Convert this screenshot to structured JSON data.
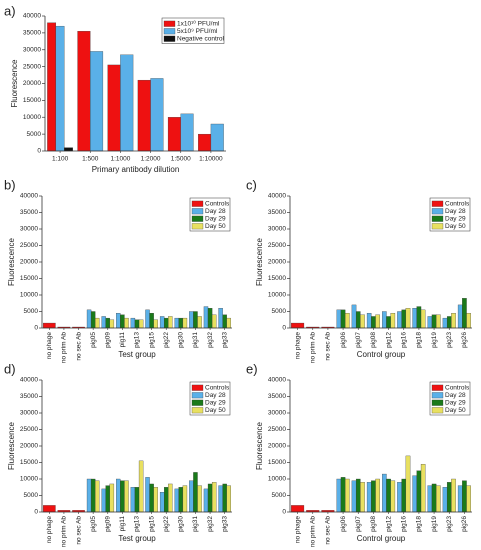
{
  "chart_data": [
    {
      "type": "bar",
      "panel": "a)",
      "ylabel": "Fluorescence",
      "xlabel": "Primary antibody dilution",
      "categories": [
        "1:100",
        "1:500",
        "1:1000",
        "1:2000",
        "1:5000",
        "1:10000"
      ],
      "series": [
        {
          "name": "1x10¹⁰ PFU/ml",
          "color": "#ee1111",
          "values": [
            38000,
            35500,
            25500,
            21000,
            10000,
            5000
          ]
        },
        {
          "name": "5x10⁹ PFU/ml",
          "color": "#5ab0e8",
          "values": [
            37000,
            29500,
            28500,
            21500,
            11000,
            8000
          ]
        },
        {
          "name": "Negative control",
          "color": "#111111",
          "values": [
            1000,
            null,
            null,
            null,
            null,
            null
          ]
        }
      ],
      "ylim": [
        0,
        40000
      ],
      "yticks": [
        0,
        5000,
        10000,
        15000,
        20000,
        25000,
        30000,
        35000,
        40000
      ]
    },
    {
      "type": "bar",
      "panel": "b)",
      "ylabel": "Fluorescence",
      "xlabel": "Test group",
      "categories": [
        "no phage",
        "no prim Ab",
        "no sec Ab",
        "pig05",
        "pig09",
        "pig11",
        "pig13",
        "pig15",
        "pig22",
        "pig30",
        "pig31",
        "pig32",
        "pig33"
      ],
      "series": [
        {
          "name": "Controls",
          "color": "#ee1111",
          "values": [
            1500,
            300,
            300,
            null,
            null,
            null,
            null,
            null,
            null,
            null,
            null,
            null,
            null
          ]
        },
        {
          "name": "Day 28",
          "color": "#5ab0e8",
          "values": [
            null,
            null,
            null,
            5500,
            3500,
            4500,
            3000,
            5500,
            3500,
            3000,
            5000,
            6500,
            6000
          ]
        },
        {
          "name": "Day 29",
          "color": "#1a7a1a",
          "values": [
            null,
            null,
            null,
            5000,
            3000,
            4000,
            2500,
            4500,
            3000,
            3000,
            5000,
            6000,
            4000
          ]
        },
        {
          "name": "Day 50",
          "color": "#e8e060",
          "values": [
            null,
            null,
            null,
            3000,
            2500,
            3000,
            2500,
            2500,
            3500,
            3000,
            3500,
            4000,
            3000
          ]
        }
      ],
      "ylim": [
        0,
        40000
      ],
      "yticks": [
        0,
        5000,
        10000,
        15000,
        20000,
        25000,
        30000,
        35000,
        40000
      ]
    },
    {
      "type": "bar",
      "panel": "c)",
      "ylabel": "Fluorescence",
      "xlabel": "Control group",
      "categories": [
        "no phage",
        "no prim Ab",
        "no sec Ab",
        "pig06",
        "pig07",
        "pig08",
        "pig12",
        "pig16",
        "pig18",
        "pig19",
        "pig23",
        "pig26"
      ],
      "series": [
        {
          "name": "Controls",
          "color": "#ee1111",
          "values": [
            1500,
            300,
            300,
            null,
            null,
            null,
            null,
            null,
            null,
            null,
            null,
            null
          ]
        },
        {
          "name": "Day 28",
          "color": "#5ab0e8",
          "values": [
            null,
            null,
            null,
            5500,
            7000,
            4500,
            5000,
            5000,
            6000,
            3500,
            3000,
            7000
          ]
        },
        {
          "name": "Day 29",
          "color": "#1a7a1a",
          "values": [
            null,
            null,
            null,
            5500,
            5000,
            3500,
            3500,
            5500,
            6500,
            4000,
            3500,
            9000
          ]
        },
        {
          "name": "Day 50",
          "color": "#e8e060",
          "values": [
            null,
            null,
            null,
            4500,
            4000,
            4000,
            4500,
            6000,
            5500,
            4000,
            4500,
            4500
          ]
        }
      ],
      "ylim": [
        0,
        40000
      ],
      "yticks": [
        0,
        5000,
        10000,
        15000,
        20000,
        25000,
        30000,
        35000,
        40000
      ]
    },
    {
      "type": "bar",
      "panel": "d)",
      "ylabel": "Fluorescence",
      "xlabel": "Test group",
      "categories": [
        "no phage",
        "no prim Ab",
        "no sec Ab",
        "pig05",
        "pig09",
        "pig11",
        "pig13",
        "pig15",
        "pig22",
        "pig30",
        "pig31",
        "pig32",
        "pig33"
      ],
      "series": [
        {
          "name": "Controls",
          "color": "#ee1111",
          "values": [
            2000,
            500,
            500,
            null,
            null,
            null,
            null,
            null,
            null,
            null,
            null,
            null,
            null
          ]
        },
        {
          "name": "Day 28",
          "color": "#5ab0e8",
          "values": [
            null,
            null,
            null,
            10000,
            7000,
            10000,
            7500,
            10500,
            6000,
            7000,
            9500,
            7000,
            8000
          ]
        },
        {
          "name": "Day 29",
          "color": "#1a7a1a",
          "values": [
            null,
            null,
            null,
            10000,
            8000,
            9500,
            7500,
            8500,
            7500,
            7500,
            12000,
            8500,
            8500
          ]
        },
        {
          "name": "Day 50",
          "color": "#e8e060",
          "values": [
            null,
            null,
            null,
            9500,
            8500,
            9500,
            15500,
            7500,
            8500,
            8000,
            8000,
            9000,
            8000
          ]
        }
      ],
      "ylim": [
        0,
        40000
      ],
      "yticks": [
        0,
        5000,
        10000,
        15000,
        20000,
        25000,
        30000,
        35000,
        40000
      ]
    },
    {
      "type": "bar",
      "panel": "e)",
      "ylabel": "Fluorescence",
      "xlabel": "Control group",
      "categories": [
        "no phage",
        "no prim Ab",
        "no sec Ab",
        "pig06",
        "pig07",
        "pig08",
        "pig12",
        "pig16",
        "pig18",
        "pig19",
        "pig23",
        "pig26"
      ],
      "series": [
        {
          "name": "Controls",
          "color": "#ee1111",
          "values": [
            2000,
            500,
            500,
            null,
            null,
            null,
            null,
            null,
            null,
            null,
            null,
            null
          ]
        },
        {
          "name": "Day 28",
          "color": "#5ab0e8",
          "values": [
            null,
            null,
            null,
            10000,
            9500,
            9000,
            11500,
            9000,
            11000,
            8000,
            7500,
            8000
          ]
        },
        {
          "name": "Day 29",
          "color": "#1a7a1a",
          "values": [
            null,
            null,
            null,
            10500,
            10000,
            9500,
            10000,
            10000,
            12500,
            8500,
            9000,
            9500
          ]
        },
        {
          "name": "Day 50",
          "color": "#e8e060",
          "values": [
            null,
            null,
            null,
            10000,
            9000,
            10000,
            9500,
            17000,
            14500,
            8000,
            10000,
            8000
          ]
        }
      ],
      "ylim": [
        0,
        40000
      ],
      "yticks": [
        0,
        5000,
        10000,
        15000,
        20000,
        25000,
        30000,
        35000,
        40000
      ]
    }
  ]
}
